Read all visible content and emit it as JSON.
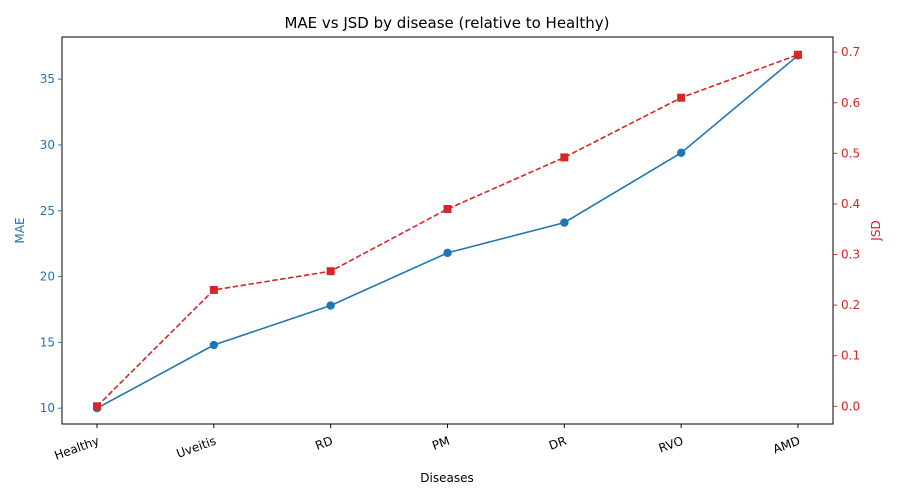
{
  "chart_data": {
    "type": "line",
    "title": "MAE vs JSD by disease (relative to Healthy)",
    "xlabel": "Diseases",
    "categories": [
      "Healthy",
      "Uveitis",
      "RD",
      "PM",
      "DR",
      "RVO",
      "AMD"
    ],
    "y_left": {
      "label": "MAE",
      "lim": [
        8.8,
        38.2
      ],
      "ticks": [
        10,
        15,
        20,
        25,
        30,
        35
      ],
      "color": "#1f77b4"
    },
    "y_right": {
      "label": "JSD",
      "lim": [
        -0.035,
        0.73
      ],
      "ticks": [
        0.0,
        0.1,
        0.2,
        0.3,
        0.4,
        0.5,
        0.6,
        0.7
      ],
      "color": "#d62728"
    },
    "grid": false,
    "series": [
      {
        "axis": "left",
        "marker": "circle",
        "line": "solid",
        "color": "#1f77b4",
        "values": [
          10.0,
          14.8,
          17.8,
          21.8,
          24.1,
          29.4,
          36.8
        ]
      },
      {
        "axis": "right",
        "marker": "square",
        "line": "dashed",
        "color": "#d62728",
        "values": [
          0.0,
          0.23,
          0.267,
          0.39,
          0.492,
          0.61,
          0.695
        ]
      }
    ]
  }
}
